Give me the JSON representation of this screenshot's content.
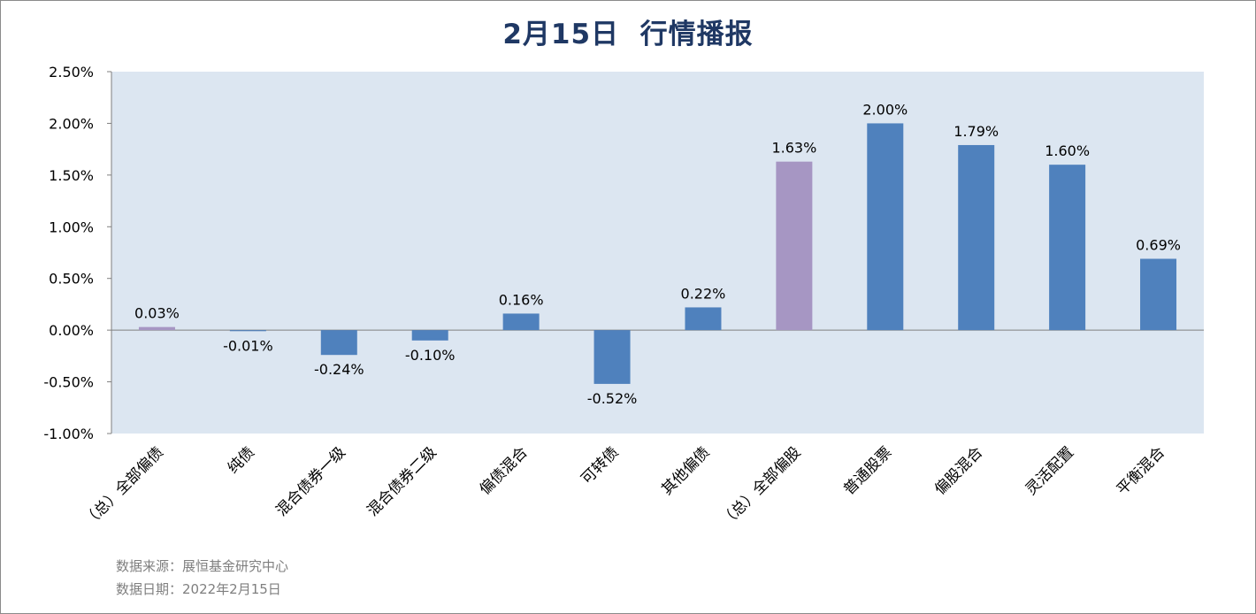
{
  "title": "2月15日  行情播报",
  "footer": {
    "source": "数据来源：展恒基金研究中心",
    "date": "数据日期：2022年2月15日"
  },
  "colors": {
    "plot_bg": "#dce6f1",
    "bar_default": "#4f81bd",
    "bar_highlight": "#a696c3",
    "title": "#1f3864"
  },
  "chart_data": {
    "type": "bar",
    "categories": [
      "（总）全部偏债",
      "纯债",
      "混合债券一级",
      "混合债券二级",
      "偏债混合",
      "可转债",
      "其他偏债",
      "（总）全部偏股",
      "普通股票",
      "偏股混合",
      "灵活配置",
      "平衡混合"
    ],
    "values": [
      0.03,
      -0.01,
      -0.24,
      -0.1,
      0.16,
      -0.52,
      0.22,
      1.63,
      2.0,
      1.79,
      1.6,
      0.69
    ],
    "data_labels": [
      "0.03%",
      "-0.01%",
      "-0.24%",
      "-0.10%",
      "0.16%",
      "-0.52%",
      "0.22%",
      "1.63%",
      "2.00%",
      "1.79%",
      "1.60%",
      "0.69%"
    ],
    "highlight": [
      true,
      false,
      false,
      false,
      false,
      false,
      false,
      true,
      false,
      false,
      false,
      false
    ],
    "ylim": [
      -1.0,
      2.5
    ],
    "yticks": [
      2.5,
      2.0,
      1.5,
      1.0,
      0.5,
      0.0,
      -0.5,
      -1.0
    ],
    "ytick_labels": [
      "2.50%",
      "2.00%",
      "1.50%",
      "1.00%",
      "0.50%",
      "0.00%",
      "-0.50%",
      "-1.00%"
    ],
    "grid": false,
    "xlabel": "",
    "ylabel": ""
  }
}
